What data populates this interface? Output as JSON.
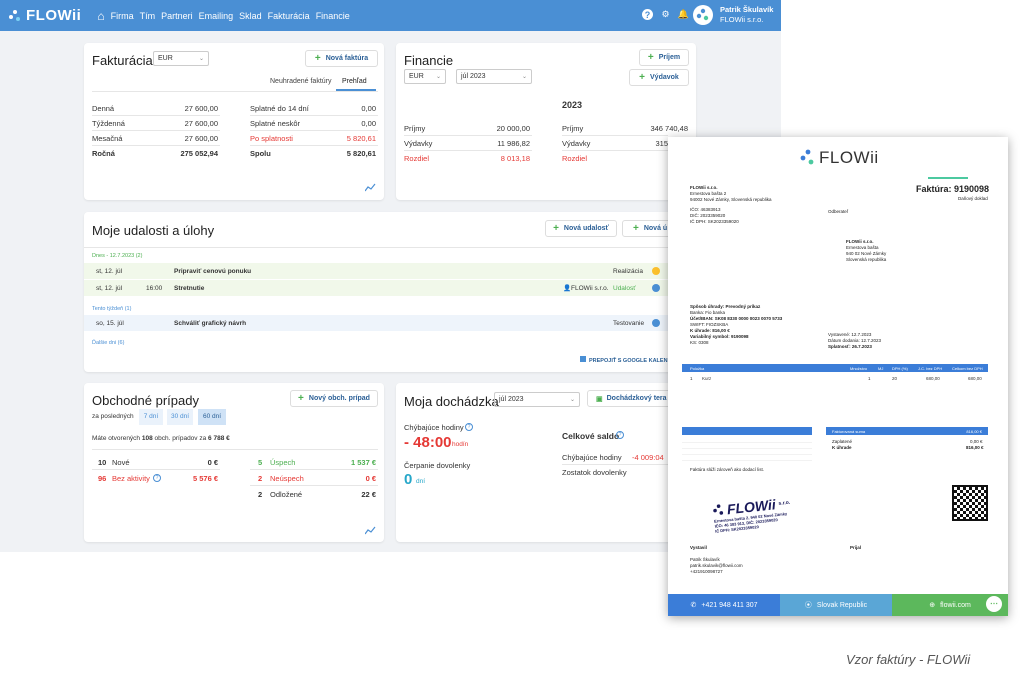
{
  "topbar": {
    "logo_text": "FLOWii",
    "nav": [
      "Firma",
      "Tím",
      "Partneri",
      "Emailing",
      "Sklad",
      "Fakturácia",
      "Financie"
    ],
    "user_name": "Patrik Škulavík",
    "company": "FLOWii s.r.o."
  },
  "fakturacia": {
    "title": "Fakturácia",
    "currency": "EUR",
    "new_btn": "Nová faktúra",
    "tabs": [
      "Neuhradené faktúry",
      "Prehľad"
    ],
    "left": [
      {
        "label": "Denná",
        "value": "27 600,00"
      },
      {
        "label": "Týždenná",
        "value": "27 600,00"
      },
      {
        "label": "Mesačná",
        "value": "27 600,00"
      },
      {
        "label": "Ročná",
        "value": "275 052,94"
      }
    ],
    "right": [
      {
        "label": "Splatné do 14 dní",
        "value": "0,00"
      },
      {
        "label": "Splatné neskôr",
        "value": "0,00"
      },
      {
        "label": "Po splatnosti",
        "value": "5 820,61"
      },
      {
        "label": "Spolu",
        "value": "5 820,61"
      }
    ]
  },
  "financie": {
    "title": "Financie",
    "currency": "EUR",
    "month": "júl 2023",
    "btn_income": "Príjem",
    "btn_expense": "Výdavok",
    "year": "2023",
    "left": [
      {
        "label": "Príjmy",
        "value": "20 000,00"
      },
      {
        "label": "Výdavky",
        "value": "11 986,82"
      },
      {
        "label": "Rozdiel",
        "value": "8 013,18"
      }
    ],
    "right": [
      {
        "label": "Príjmy",
        "value": "346 740,48"
      },
      {
        "label": "Výdavky",
        "value": "315"
      },
      {
        "label": "Rozdiel",
        "value": ""
      }
    ]
  },
  "udalosti": {
    "title": "Moje udalosti a úlohy",
    "btn_event": "Nová udalosť",
    "btn_task": "Nová ú",
    "today_label": "Dnes - 12.7.2023 (2)",
    "week_label": "Tento týždeň (1)",
    "other_label": "Ďalšie dni (6)",
    "rows": [
      {
        "date": "st, 12. júl",
        "time": "",
        "title": "Pripraviť cenovú ponuku",
        "owner": "",
        "status": "Realizácia"
      },
      {
        "date": "st, 12. júl",
        "time": "16:00",
        "title": "Stretnutie",
        "owner": "FLOWii s.r.o.",
        "status": "Udalosť"
      },
      {
        "date": "so, 15. júl",
        "time": "",
        "title": "Schváliť grafický návrh",
        "owner": "",
        "status": "Testovanie"
      }
    ],
    "google_link": "PREPOJIŤ S GOOGLE KALEN"
  },
  "obchodne": {
    "title": "Obchodné prípady",
    "btn_new": "Nový obch. prípad",
    "period_label": "za posledných",
    "periods": [
      "7 dní",
      "30 dní",
      "60 dní"
    ],
    "summary_prefix": "Máte otvorených",
    "summary_count": "108",
    "summary_mid": "obch. prípadov za",
    "summary_value": "6 788 €",
    "left": [
      {
        "count": "10",
        "label": "Nové",
        "value": "0 €"
      },
      {
        "count": "96",
        "label": "Bez aktivity",
        "value": "5 576 €"
      }
    ],
    "right": [
      {
        "count": "5",
        "label": "Úspech",
        "value": "1 537 €"
      },
      {
        "count": "2",
        "label": "Neúspech",
        "value": "0 €"
      },
      {
        "count": "2",
        "label": "Odložené",
        "value": "22 €"
      }
    ]
  },
  "dochadzka": {
    "title": "Moja dochádzka",
    "month": "júl 2023",
    "btn": "Dochádzkový tera",
    "missing_label": "Chýbajúce hodiny",
    "missing_value": "- 48:00",
    "missing_unit": "hodín",
    "vacation_label": "Čerpanie dovolenky",
    "vacation_value": "0",
    "vacation_unit": "dní",
    "total_title": "Celkové saldo",
    "total_missing_label": "Chýbajúce hodiny",
    "total_missing_value": "-4 009:04",
    "remaining_label": "Zostatok dovolenky"
  },
  "invoice": {
    "logo_text": "FLOWii",
    "title": "Faktúra: 9190098",
    "subtitle": "Daňový doklad",
    "supplier": [
      "FLOWii s.r.o.",
      "Ernestova bašta 2",
      "94002 Nové Zámky, Slovenská republika",
      "",
      "IČO: 46383913",
      "DIČ: 2023359020",
      "IČ DPH: SK2023359020"
    ],
    "buyer_label": "Odberateľ",
    "buyer": [
      "FLOWii s.r.o.",
      "Ernestova bašta",
      "940 02 Nové Zámky",
      "Slovenská republika"
    ],
    "payment": [
      "Spôsob úhrady: Prevodný príkaz",
      "Banka: Fio banka",
      "Účet/IBAN: SK08 8330 0000 0023 0070 5733",
      "SWIFT: FIOZSKBA",
      "K úhrade: 816,00 €",
      "Variabilný symbol: 9190098",
      "KS: 0308"
    ],
    "dates": [
      "Vystavené: 12.7.2023",
      "Dátum dodania: 12.7.2023",
      "Splatnosť: 26.7.2023"
    ],
    "item_headers": [
      "Položka",
      "Množstvo",
      "MJ",
      "DPH (%)",
      "J.C. bez DPH",
      "Celkom bez DPH"
    ],
    "item": [
      "1",
      "Kurz",
      "1",
      "20",
      "680,00",
      "680,00"
    ],
    "total_label": "Fakturovaná suma",
    "total_value": "816,00 €",
    "paid_label": "Zaplatené",
    "paid_value": "0,00 €",
    "to_pay_label": "K úhrade",
    "to_pay_value": "816,00 €",
    "note": "Faktúra slúži zároveň ako dodací list.",
    "issued_by": "Vystavil",
    "received_by": "Prijal",
    "person": [
      "Patrik Škulavík",
      "patrik.skulavik@flowii.com",
      "+421910098727"
    ],
    "stamp_text": "FLOWii",
    "stamp_sub": "s.r.o.",
    "stamp_lines": [
      "Ernestova bašta 2, 940 02 Nové Zámky",
      "IČO: 46 383 913, DIČ: 2023359020",
      "IČ DPH: SK2023359020"
    ],
    "footer": [
      "+421 948 411 307",
      "Slovak Republic",
      "flowii.com"
    ]
  },
  "caption": "Vzor faktúry - FLOWii"
}
